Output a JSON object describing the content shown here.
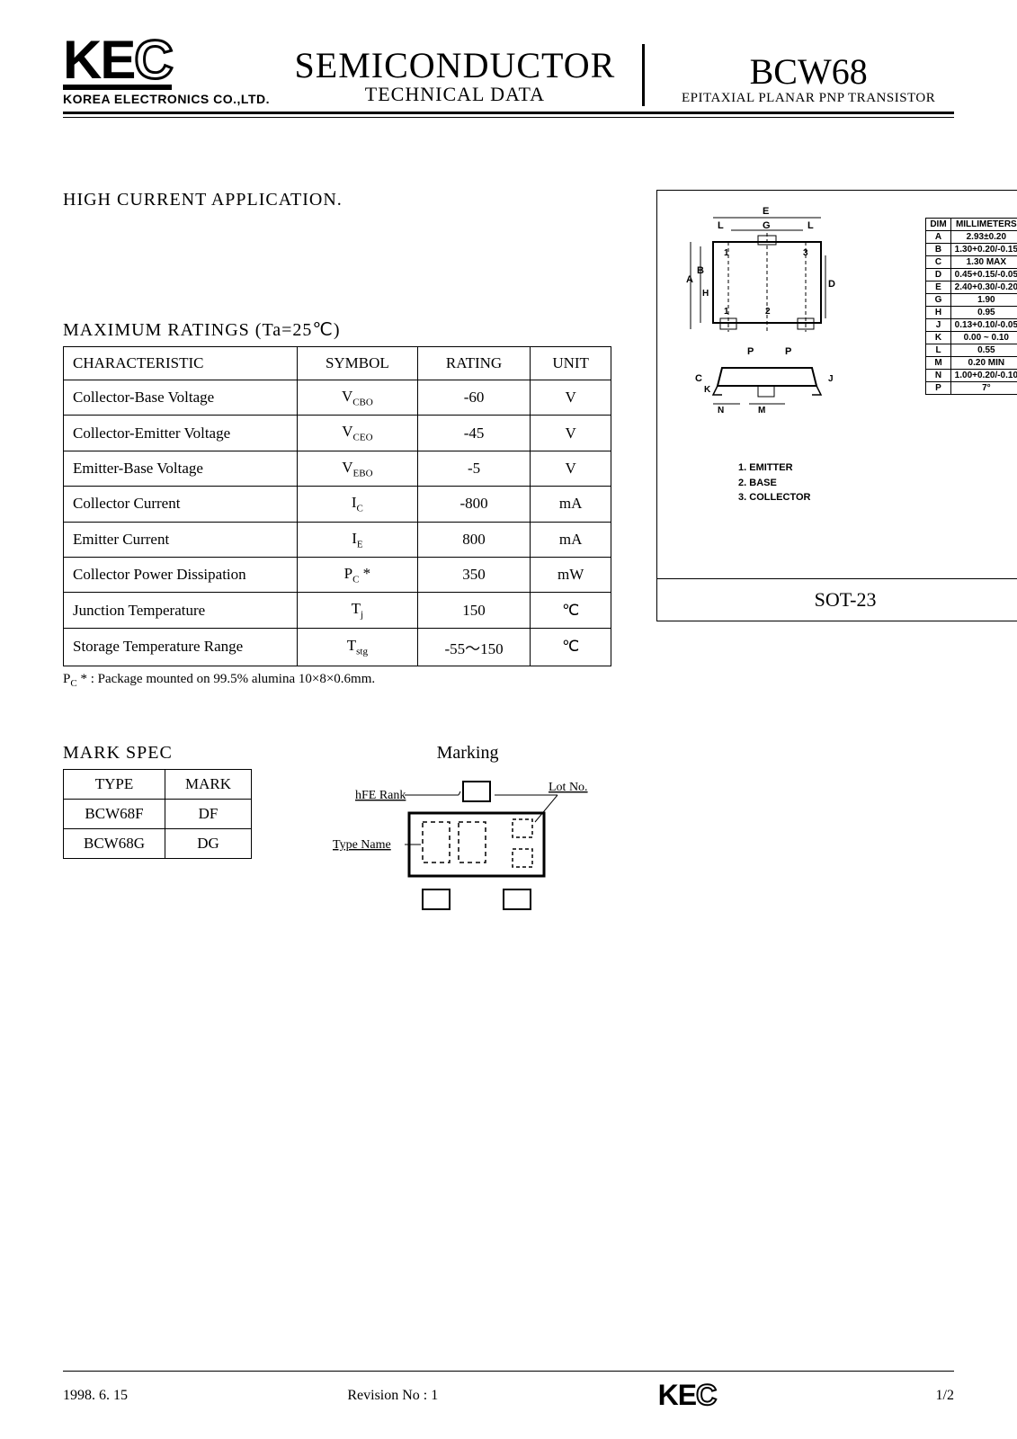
{
  "header": {
    "logo_text": "KEC",
    "logo_sub": "KOREA ELECTRONICS CO.,LTD.",
    "center_big": "SEMICONDUCTOR",
    "center_sub": "TECHNICAL DATA",
    "part": "BCW68",
    "part_desc": "EPITAXIAL PLANAR PNP TRANSISTOR"
  },
  "application": "HIGH CURRENT APPLICATION.",
  "ratings": {
    "title": "MAXIMUM RATINGS (Ta=25℃)",
    "columns": [
      "CHARACTERISTIC",
      "SYMBOL",
      "RATING",
      "UNIT"
    ],
    "rows": [
      {
        "c": "Collector-Base Voltage",
        "s": "V",
        "sub": "CBO",
        "r": "-60",
        "u": "V"
      },
      {
        "c": "Collector-Emitter Voltage",
        "s": "V",
        "sub": "CEO",
        "r": "-45",
        "u": "V"
      },
      {
        "c": "Emitter-Base Voltage",
        "s": "V",
        "sub": "EBO",
        "r": "-5",
        "u": "V"
      },
      {
        "c": "Collector Current",
        "s": "I",
        "sub": "C",
        "r": "-800",
        "u": "mA"
      },
      {
        "c": "Emitter Current",
        "s": "I",
        "sub": "E",
        "r": "800",
        "u": "mA"
      },
      {
        "c": "Collector Power Dissipation",
        "s": "P",
        "sub": "C",
        "suffix": " *",
        "r": "350",
        "u": "mW"
      },
      {
        "c": "Junction Temperature",
        "s": "T",
        "sub": "j",
        "r": "150",
        "u": "℃"
      },
      {
        "c": "Storage Temperature Range",
        "s": "T",
        "sub": "stg",
        "r": "-55～150",
        "u": "℃"
      }
    ],
    "footnote_prefix": "P",
    "footnote_sub": "C",
    "footnote_rest": " * : Package mounted on 99.5% alumina 10×8×0.6mm."
  },
  "mark_spec": {
    "title": "MARK SPEC",
    "columns": [
      "TYPE",
      "MARK"
    ],
    "rows": [
      {
        "t": "BCW68F",
        "m": "DF"
      },
      {
        "t": "BCW68G",
        "m": "DG"
      }
    ]
  },
  "marking": {
    "title": "Marking",
    "labels": {
      "hfe": "hFE Rank",
      "lot": "Lot No.",
      "type": "Type Name"
    }
  },
  "package": {
    "name": "SOT-23",
    "dim_header": [
      "DIM",
      "MILLIMETERS"
    ],
    "dims": [
      {
        "d": "A",
        "v": "2.93±0.20"
      },
      {
        "d": "B",
        "v": "1.30+0.20/-0.15"
      },
      {
        "d": "C",
        "v": "1.30 MAX"
      },
      {
        "d": "D",
        "v": "0.45+0.15/-0.05"
      },
      {
        "d": "E",
        "v": "2.40+0.30/-0.20"
      },
      {
        "d": "G",
        "v": "1.90"
      },
      {
        "d": "H",
        "v": "0.95"
      },
      {
        "d": "J",
        "v": "0.13+0.10/-0.05"
      },
      {
        "d": "K",
        "v": "0.00 ~ 0.10"
      },
      {
        "d": "L",
        "v": "0.55"
      },
      {
        "d": "M",
        "v": "0.20 MIN"
      },
      {
        "d": "N",
        "v": "1.00+0.20/-0.10"
      },
      {
        "d": "P",
        "v": "7°"
      }
    ],
    "pins": [
      "1. EMITTER",
      "2. BASE",
      "3. COLLECTOR"
    ]
  },
  "footer": {
    "date": "1998. 6. 15",
    "rev": "Revision No : 1",
    "logo": "KEC",
    "page": "1/2"
  },
  "colors": {
    "text": "#000000",
    "bg": "#ffffff",
    "rule": "#000000"
  }
}
